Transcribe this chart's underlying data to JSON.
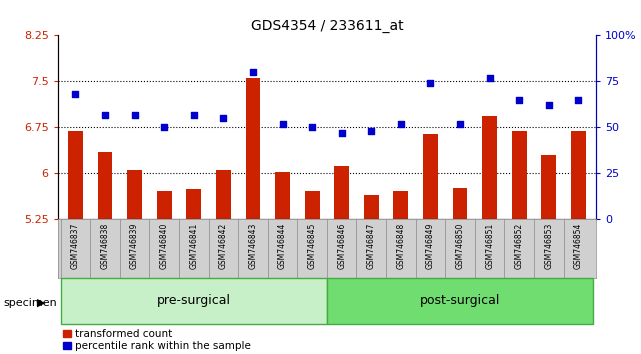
{
  "title": "GDS4354 / 233611_at",
  "samples": [
    "GSM746837",
    "GSM746838",
    "GSM746839",
    "GSM746840",
    "GSM746841",
    "GSM746842",
    "GSM746843",
    "GSM746844",
    "GSM746845",
    "GSM746846",
    "GSM746847",
    "GSM746848",
    "GSM746849",
    "GSM746850",
    "GSM746851",
    "GSM746852",
    "GSM746853",
    "GSM746854"
  ],
  "bar_values": [
    6.7,
    6.35,
    6.05,
    5.72,
    5.75,
    6.05,
    7.55,
    6.02,
    5.72,
    6.12,
    5.65,
    5.72,
    6.65,
    5.77,
    6.93,
    6.7,
    6.3,
    6.7
  ],
  "dot_values": [
    68,
    57,
    57,
    50,
    57,
    55,
    80,
    52,
    50,
    47,
    48,
    52,
    74,
    52,
    77,
    65,
    62,
    65
  ],
  "ylim_left": [
    5.25,
    8.25
  ],
  "ylim_right": [
    0,
    100
  ],
  "yticks_left": [
    5.25,
    6.0,
    6.75,
    7.5,
    8.25
  ],
  "yticks_right": [
    0,
    25,
    50,
    75,
    100
  ],
  "ytick_labels_left": [
    "5.25",
    "6",
    "6.75",
    "7.5",
    "8.25"
  ],
  "ytick_labels_right": [
    "0",
    "25",
    "50",
    "75",
    "100%"
  ],
  "hlines": [
    6.0,
    6.75,
    7.5
  ],
  "bar_color": "#cc2200",
  "dot_color": "#0000cc",
  "pre_surgical_count": 9,
  "post_surgical_count": 9,
  "group_label_pre": "pre-surgical",
  "group_label_post": "post-surgical",
  "specimen_label": "specimen",
  "legend_bar": "transformed count",
  "legend_dot": "percentile rank within the sample",
  "bg_plot": "#ffffff",
  "bg_tick_area": "#d0d0d0",
  "bg_pre": "#c8f0c8",
  "bg_post": "#70dd70",
  "bar_width": 0.5
}
